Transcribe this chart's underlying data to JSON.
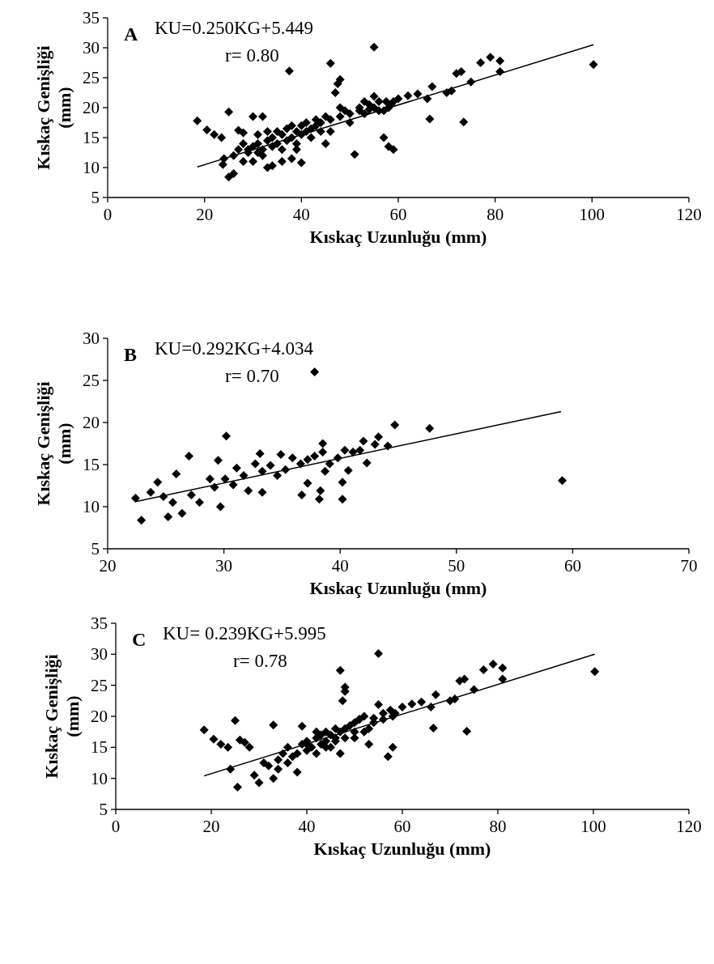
{
  "chart_data": [
    {
      "type": "scatter",
      "title": "A",
      "xlabel": "Kıskaç Uzunluğu (mm)",
      "ylabel": "Kıskaç Genişliği (mm)",
      "annotations": [
        "KU=0.250KG+5.449",
        "r= 0.80"
      ],
      "xlim": [
        0,
        120
      ],
      "xticks": [
        0,
        20,
        40,
        60,
        80,
        100,
        120
      ],
      "ylim": [
        5,
        35
      ],
      "yticks": [
        5,
        10,
        15,
        20,
        25,
        30,
        35
      ],
      "grid": false,
      "marker": "diamond",
      "series": [
        {
          "color": "#000000",
          "x": [
            18.5,
            20.5,
            22,
            23.5,
            25,
            24,
            23.8,
            25,
            26,
            27,
            28,
            29,
            30,
            31,
            32,
            33,
            34,
            36,
            37.5,
            38,
            39,
            40,
            41,
            42,
            43,
            44,
            45,
            46,
            47,
            47.5,
            48,
            48,
            49,
            50,
            51,
            52,
            53,
            54,
            55,
            55,
            56,
            57,
            57.5,
            58,
            58.5,
            59,
            60,
            62,
            64,
            66,
            66.5,
            67,
            70,
            71,
            72,
            73,
            73.5,
            75,
            77,
            79,
            81,
            81,
            100.3,
            26,
            27,
            28,
            28,
            29,
            30,
            30,
            31,
            31,
            32,
            32,
            33,
            33,
            34,
            34,
            35,
            35,
            36,
            36,
            37,
            37,
            38,
            38,
            39,
            39,
            40,
            40,
            41,
            42,
            43,
            44,
            45,
            46,
            46,
            48,
            50,
            52,
            53,
            54,
            55,
            56,
            57,
            58,
            59
          ],
          "values": [
            17.8,
            16.3,
            15.5,
            15,
            19.3,
            11.5,
            10.5,
            8.4,
            9,
            16.2,
            15.8,
            13,
            18.5,
            12.5,
            18.5,
            10,
            10.3,
            11,
            26.1,
            11.5,
            13,
            10.8,
            17.5,
            15,
            17,
            16,
            14,
            27.4,
            22.5,
            24,
            24.7,
            20,
            19.5,
            17.5,
            12.2,
            19.5,
            19,
            19.7,
            30.1,
            21.9,
            19.5,
            15,
            21,
            13.5,
            20.5,
            13,
            21.5,
            22,
            22.3,
            21.5,
            18.1,
            23.5,
            22.5,
            22.8,
            25.7,
            26,
            17.6,
            24.3,
            27.5,
            28.4,
            27.8,
            26,
            27.2,
            12,
            13,
            11,
            14,
            12.5,
            13.5,
            11,
            14,
            15.5,
            13,
            12,
            14.5,
            16,
            13.5,
            15,
            14,
            16,
            15.5,
            13,
            14.5,
            16.5,
            15,
            17,
            16,
            14,
            15.5,
            17,
            16,
            16.5,
            18,
            17.5,
            18.5,
            18,
            16,
            18.5,
            19,
            20,
            21,
            20.5,
            20,
            21,
            19.5,
            20,
            21
          ]
        },
        {
          "type": "line",
          "color": "#000000",
          "marker": "none",
          "x": [
            18.5,
            100.3
          ],
          "values": [
            10.1,
            30.5
          ]
        }
      ]
    },
    {
      "type": "scatter",
      "title": "B",
      "xlabel": "Kıskaç Uzunluğu (mm)",
      "ylabel": "Kıskaç Genişliği (mm)",
      "annotations": [
        "KU=0.292KG+4.034",
        "r= 0.70"
      ],
      "xlim": [
        20,
        70
      ],
      "xticks": [
        20,
        30,
        40,
        50,
        60,
        70
      ],
      "ylim": [
        5,
        30
      ],
      "yticks": [
        5,
        10,
        15,
        20,
        25,
        30
      ],
      "grid": false,
      "marker": "diamond",
      "series": [
        {
          "color": "#000000",
          "x": [
            22.4,
            22.9,
            24.3,
            25.9,
            27,
            25.2,
            26.4,
            30.2,
            29.7,
            29.5,
            33.1,
            33.3,
            34.9,
            36.7,
            37.8,
            38.2,
            38.5,
            40.2,
            40.2,
            40.7,
            42.3,
            43.3,
            44.7,
            47.7,
            59.1,
            44.1,
            42,
            23.7,
            24.8,
            25.6,
            27.2,
            27.9,
            28.8,
            29.2,
            30.1,
            30.8,
            31.1,
            31.7,
            32.1,
            32.7,
            33.3,
            34,
            34.6,
            35.3,
            35.9,
            36.6,
            37.2,
            37.8,
            38.5,
            39.1,
            39.8,
            40.4,
            41.1,
            41.7,
            43,
            38.7,
            37.2,
            38.3
          ],
          "values": [
            11,
            8.4,
            12.9,
            13.9,
            16,
            8.8,
            9.2,
            18.4,
            10,
            15.5,
            16.3,
            11.7,
            16.2,
            11.4,
            26,
            10.9,
            17.5,
            10.9,
            12.9,
            14.3,
            15.2,
            18.3,
            19.7,
            19.3,
            13.1,
            17.2,
            17.8,
            11.7,
            11.2,
            10.5,
            11.4,
            10.5,
            13.3,
            12.3,
            13.3,
            12.6,
            14.6,
            13.7,
            11.9,
            15.1,
            14.2,
            14.9,
            13.7,
            14.4,
            15.8,
            15.1,
            15.6,
            16,
            16.5,
            15.1,
            15.8,
            16.7,
            16.5,
            16.7,
            17.4,
            14.2,
            12.8,
            11.9
          ]
        },
        {
          "type": "line",
          "color": "#000000",
          "marker": "none",
          "x": [
            22.4,
            59
          ],
          "values": [
            10.6,
            21.3
          ]
        }
      ]
    },
    {
      "type": "scatter",
      "title": "C",
      "xlabel": "Kıskaç Uzunluğu (mm)",
      "ylabel": "Kıskaç Genişliği (mm)",
      "annotations": [
        "KU= 0.239KG+5.995",
        "r= 0.78"
      ],
      "xlim": [
        0,
        120
      ],
      "xticks": [
        0,
        20,
        40,
        60,
        80,
        100,
        120
      ],
      "ylim": [
        5,
        35
      ],
      "yticks": [
        5,
        10,
        15,
        20,
        25,
        30,
        35
      ],
      "grid": false,
      "marker": "diamond",
      "series": [
        {
          "color": "#000000",
          "x": [
            18.5,
            20.5,
            22,
            23.5,
            25,
            24,
            25.5,
            26,
            27,
            28,
            29,
            30,
            31,
            33,
            33,
            34,
            36,
            38,
            39,
            40,
            42,
            44,
            46,
            47,
            47.5,
            48,
            48,
            50,
            51,
            52,
            53,
            54,
            55,
            55,
            56,
            57,
            57.5,
            58,
            58.5,
            60,
            62,
            64,
            66,
            66.5,
            67,
            70,
            71,
            72,
            73,
            73.5,
            75,
            77,
            79,
            81,
            81,
            100.3,
            32,
            34,
            35,
            36,
            37,
            38,
            39,
            40,
            40,
            41,
            42,
            42,
            43,
            43,
            44,
            44,
            45,
            45,
            46,
            46,
            47,
            47,
            48,
            48,
            49,
            50,
            50,
            51,
            52,
            53,
            54,
            56,
            58
          ],
          "values": [
            17.8,
            16.3,
            15.5,
            15,
            19.3,
            11.5,
            8.6,
            16.2,
            15.8,
            15,
            10.5,
            9.3,
            12.5,
            18.6,
            10,
            11.5,
            15,
            11,
            18.4,
            15.5,
            17.5,
            15,
            16,
            27.4,
            22.5,
            24,
            24.7,
            16.5,
            19.5,
            17.5,
            15.5,
            19.7,
            30.1,
            21.9,
            19.5,
            13.5,
            21,
            15,
            20.5,
            21.5,
            22,
            22.3,
            21.5,
            18.1,
            23.5,
            22.5,
            22.8,
            25.7,
            26,
            17.6,
            24.3,
            27.5,
            28.4,
            27.8,
            26,
            27.2,
            12,
            13,
            14,
            12.5,
            13.5,
            14,
            15.5,
            14.5,
            16,
            15,
            16.5,
            14,
            17,
            15.5,
            16,
            17.5,
            15,
            17,
            16.5,
            18,
            14,
            17.5,
            18,
            16.5,
            18.5,
            19,
            17.5,
            19.5,
            20,
            18,
            19,
            20.5,
            20
          ]
        },
        {
          "type": "line",
          "color": "#000000",
          "marker": "none",
          "x": [
            18.5,
            100.3
          ],
          "values": [
            10.4,
            30
          ]
        }
      ]
    }
  ]
}
